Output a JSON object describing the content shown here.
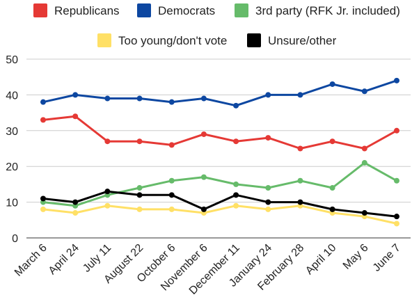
{
  "chart_data": {
    "type": "line",
    "title": "",
    "xlabel": "",
    "ylabel": "",
    "ylim": [
      0,
      50
    ],
    "yticks": [
      0,
      10,
      20,
      30,
      40,
      50
    ],
    "grid": "horizontal",
    "legend_position": "top",
    "categories": [
      "March 6",
      "April 24",
      "July 11",
      "August 22",
      "October 6",
      "November 6",
      "December 11",
      "January 24",
      "February 28",
      "April 10",
      "May 6",
      "June 7"
    ],
    "series": [
      {
        "name": "Republicans",
        "color": "#e53935",
        "values": [
          33,
          34,
          27,
          27,
          26,
          29,
          27,
          28,
          25,
          27,
          25,
          30
        ]
      },
      {
        "name": "Democrats",
        "color": "#0d47a1",
        "values": [
          38,
          40,
          39,
          39,
          38,
          39,
          37,
          40,
          40,
          43,
          41,
          44
        ]
      },
      {
        "name": "3rd party (RFK Jr. included)",
        "color": "#66bb6a",
        "values": [
          10,
          9,
          12,
          14,
          16,
          17,
          15,
          14,
          16,
          14,
          21,
          16
        ]
      },
      {
        "name": "Too young/don't vote",
        "color": "#ffe066",
        "values": [
          8,
          7,
          9,
          8,
          8,
          7,
          9,
          8,
          9,
          7,
          6,
          4
        ]
      },
      {
        "name": "Unsure/other",
        "color": "#000000",
        "values": [
          11,
          10,
          13,
          12,
          12,
          8,
          12,
          10,
          10,
          8,
          7,
          6
        ]
      }
    ]
  }
}
